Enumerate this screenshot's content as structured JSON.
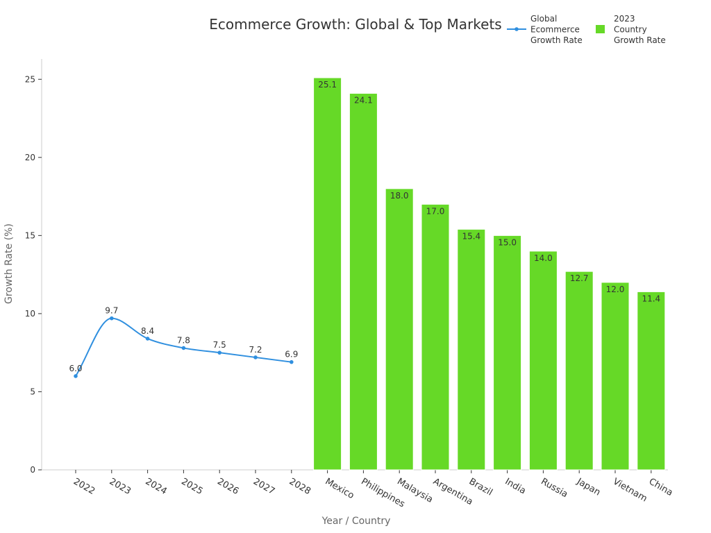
{
  "chart_data": {
    "type": "bar",
    "title": "Ecommerce Growth: Global & Top Markets",
    "xlabel": "Year / Country",
    "ylabel": "Growth Rate (%)",
    "ylim": [
      0,
      26.3
    ],
    "yticks": [
      0,
      5,
      10,
      15,
      20,
      25
    ],
    "grid": false,
    "legend_position": "top-right",
    "categories": [
      "2022",
      "2023",
      "2024",
      "2025",
      "2026",
      "2027",
      "2028",
      "Mexico",
      "Philippines",
      "Malaysia",
      "Argentina",
      "Brazil",
      "India",
      "Russia",
      "Japan",
      "Vietnam",
      "China"
    ],
    "series": [
      {
        "name": "Global Ecommerce Growth Rate",
        "kind": "line",
        "color": "#2f8fdf",
        "x": [
          "2022",
          "2023",
          "2024",
          "2025",
          "2026",
          "2027",
          "2028"
        ],
        "values": [
          6.0,
          9.7,
          8.4,
          7.8,
          7.5,
          7.2,
          6.9
        ]
      },
      {
        "name": "2023 Country Growth Rate",
        "kind": "bar",
        "color": "#66d927",
        "x": [
          "Mexico",
          "Philippines",
          "Malaysia",
          "Argentina",
          "Brazil",
          "India",
          "Russia",
          "Japan",
          "Vietnam",
          "China"
        ],
        "values": [
          25.1,
          24.1,
          18.0,
          17.0,
          15.4,
          15.0,
          14.0,
          12.7,
          12.0,
          11.4
        ]
      }
    ],
    "legend": {
      "line_label_lines": [
        "Global",
        "Ecommerce",
        "Growth Rate"
      ],
      "bar_label_lines": [
        "2023",
        "Country",
        "Growth Rate"
      ]
    }
  }
}
